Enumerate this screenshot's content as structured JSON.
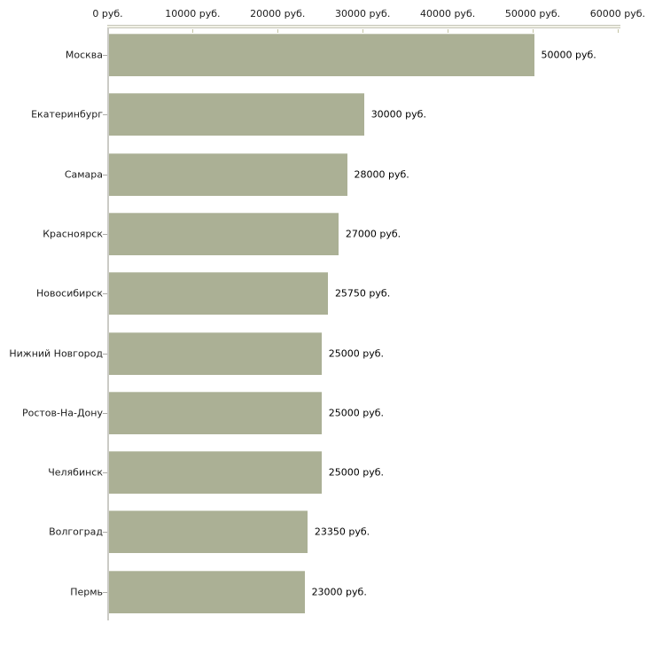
{
  "chart_data": {
    "type": "bar",
    "orientation": "horizontal",
    "title": "",
    "categories": [
      "Москва",
      "Екатеринбург",
      "Самара",
      "Красноярск",
      "Новосибирск",
      "Нижний Новгород",
      "Ростов-На-Дону",
      "Челябинск",
      "Волгоград",
      "Пермь"
    ],
    "values": [
      50000,
      30000,
      28000,
      27000,
      25750,
      25000,
      25000,
      25000,
      23350,
      23000
    ],
    "value_labels": [
      "50000 руб.",
      "30000 руб.",
      "28000 руб.",
      "27000 руб.",
      "25750 руб.",
      "25000 руб.",
      "25000 руб.",
      "25000 руб.",
      "23350 руб.",
      "23000 руб."
    ],
    "x_axis": {
      "position": "top",
      "min": 0,
      "max": 60000,
      "tick_values": [
        0,
        10000,
        20000,
        30000,
        40000,
        50000,
        60000
      ],
      "tick_labels": [
        "0 руб.",
        "10000 руб.",
        "20000 руб.",
        "30000 руб.",
        "40000 руб.",
        "50000 руб.",
        "60000 руб."
      ]
    },
    "grid": false,
    "legend": false,
    "colors": {
      "bar_fill": "#abb095",
      "axis_band_border": "#c6c6ba",
      "axis_band_fill": "#f1f1e6",
      "y_axis_line": "#cbcbc6",
      "x_tick_mark": "#c4c4a4",
      "category_tick": "#ababa7",
      "text": "#1c1c1c",
      "background": "#ffffff"
    }
  }
}
